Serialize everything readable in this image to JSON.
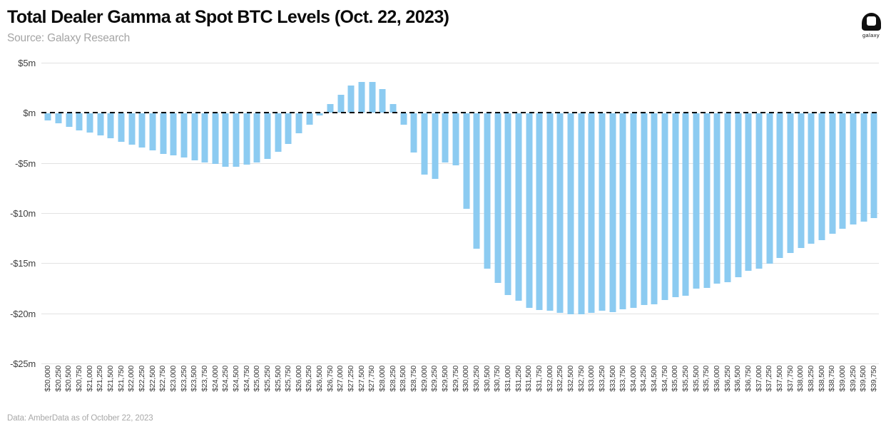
{
  "header": {
    "title": "Total Dealer Gamma at Spot BTC Levels (Oct. 22, 2023)",
    "source": "Source: Galaxy Research",
    "logo_word": "galaxy"
  },
  "footer": {
    "note": "Data: AmberData as of October 22, 2023"
  },
  "colors": {
    "bar": "#8ccbf1",
    "gridline": "#e2e2e2",
    "zero_line": "#000000",
    "title_text": "#0b0b0b",
    "muted_text": "#a8a8a8",
    "axis_text": "#3a3a3a"
  },
  "chart_data": {
    "type": "bar",
    "title": "Total Dealer Gamma at Spot BTC Levels (Oct. 22, 2023)",
    "xlabel": "",
    "ylabel": "",
    "unit": "$m",
    "ylim_m": [
      -25,
      5
    ],
    "grid": true,
    "legend": false,
    "zero_line_style": "dashed-black",
    "y_ticks": [
      {
        "label": "$5m",
        "value_m": 5
      },
      {
        "label": "$m",
        "value_m": 0
      },
      {
        "label": "-$5m",
        "value_m": -5
      },
      {
        "label": "-$10m",
        "value_m": -10
      },
      {
        "label": "-$15m",
        "value_m": -15
      },
      {
        "label": "-$20m",
        "value_m": -20
      },
      {
        "label": "-$25m",
        "value_m": -25
      }
    ],
    "categories": [
      "$20,000",
      "$20,250",
      "$20,500",
      "$20,750",
      "$21,000",
      "$21,250",
      "$21,500",
      "$21,750",
      "$22,000",
      "$22,250",
      "$22,500",
      "$22,750",
      "$23,000",
      "$23,250",
      "$23,500",
      "$23,750",
      "$24,000",
      "$24,250",
      "$24,500",
      "$24,750",
      "$25,000",
      "$25,250",
      "$25,500",
      "$25,750",
      "$26,000",
      "$26,250",
      "$26,500",
      "$26,750",
      "$27,000",
      "$27,250",
      "$27,500",
      "$27,750",
      "$28,000",
      "$28,250",
      "$28,500",
      "$28,750",
      "$29,000",
      "$29,250",
      "$29,500",
      "$29,750",
      "$30,000",
      "$30,250",
      "$30,500",
      "$30,750",
      "$31,000",
      "$31,250",
      "$31,500",
      "$31,750",
      "$32,000",
      "$32,250",
      "$32,500",
      "$32,750",
      "$33,000",
      "$33,250",
      "$33,500",
      "$33,750",
      "$34,000",
      "$34,250",
      "$34,500",
      "$34,750",
      "$35,000",
      "$35,250",
      "$35,500",
      "$35,750",
      "$36,000",
      "$36,250",
      "$36,500",
      "$36,750",
      "$37,000",
      "$37,250",
      "$37,500",
      "$37,750",
      "$38,000",
      "$38,250",
      "$38,500",
      "$38,750",
      "$39,000",
      "$39,250",
      "$39,500",
      "$39,750"
    ],
    "values_m": [
      -0.7,
      -1.0,
      -1.3,
      -1.7,
      -1.9,
      -2.2,
      -2.5,
      -2.8,
      -3.1,
      -3.4,
      -3.7,
      -4.0,
      -4.2,
      -4.4,
      -4.7,
      -4.9,
      -5.0,
      -5.3,
      -5.3,
      -5.1,
      -4.9,
      -4.5,
      -3.8,
      -3.0,
      -2.0,
      -1.1,
      -0.2,
      0.9,
      1.8,
      2.7,
      3.1,
      3.1,
      2.4,
      0.9,
      -1.1,
      -3.9,
      -6.1,
      -6.5,
      -4.9,
      -5.2,
      -9.5,
      -13.5,
      -15.5,
      -16.9,
      -18.1,
      -18.7,
      -19.4,
      -19.6,
      -19.7,
      -19.9,
      -20.0,
      -20.0,
      -19.9,
      -19.7,
      -19.8,
      -19.5,
      -19.4,
      -19.1,
      -19.0,
      -18.6,
      -18.3,
      -18.2,
      -17.5,
      -17.4,
      -17.0,
      -16.8,
      -16.3,
      -15.7,
      -15.5,
      -15.0,
      -14.4,
      -13.9,
      -13.4,
      -13.0,
      -12.6,
      -12.0,
      -11.5,
      -11.1,
      -10.8,
      -10.4
    ]
  }
}
